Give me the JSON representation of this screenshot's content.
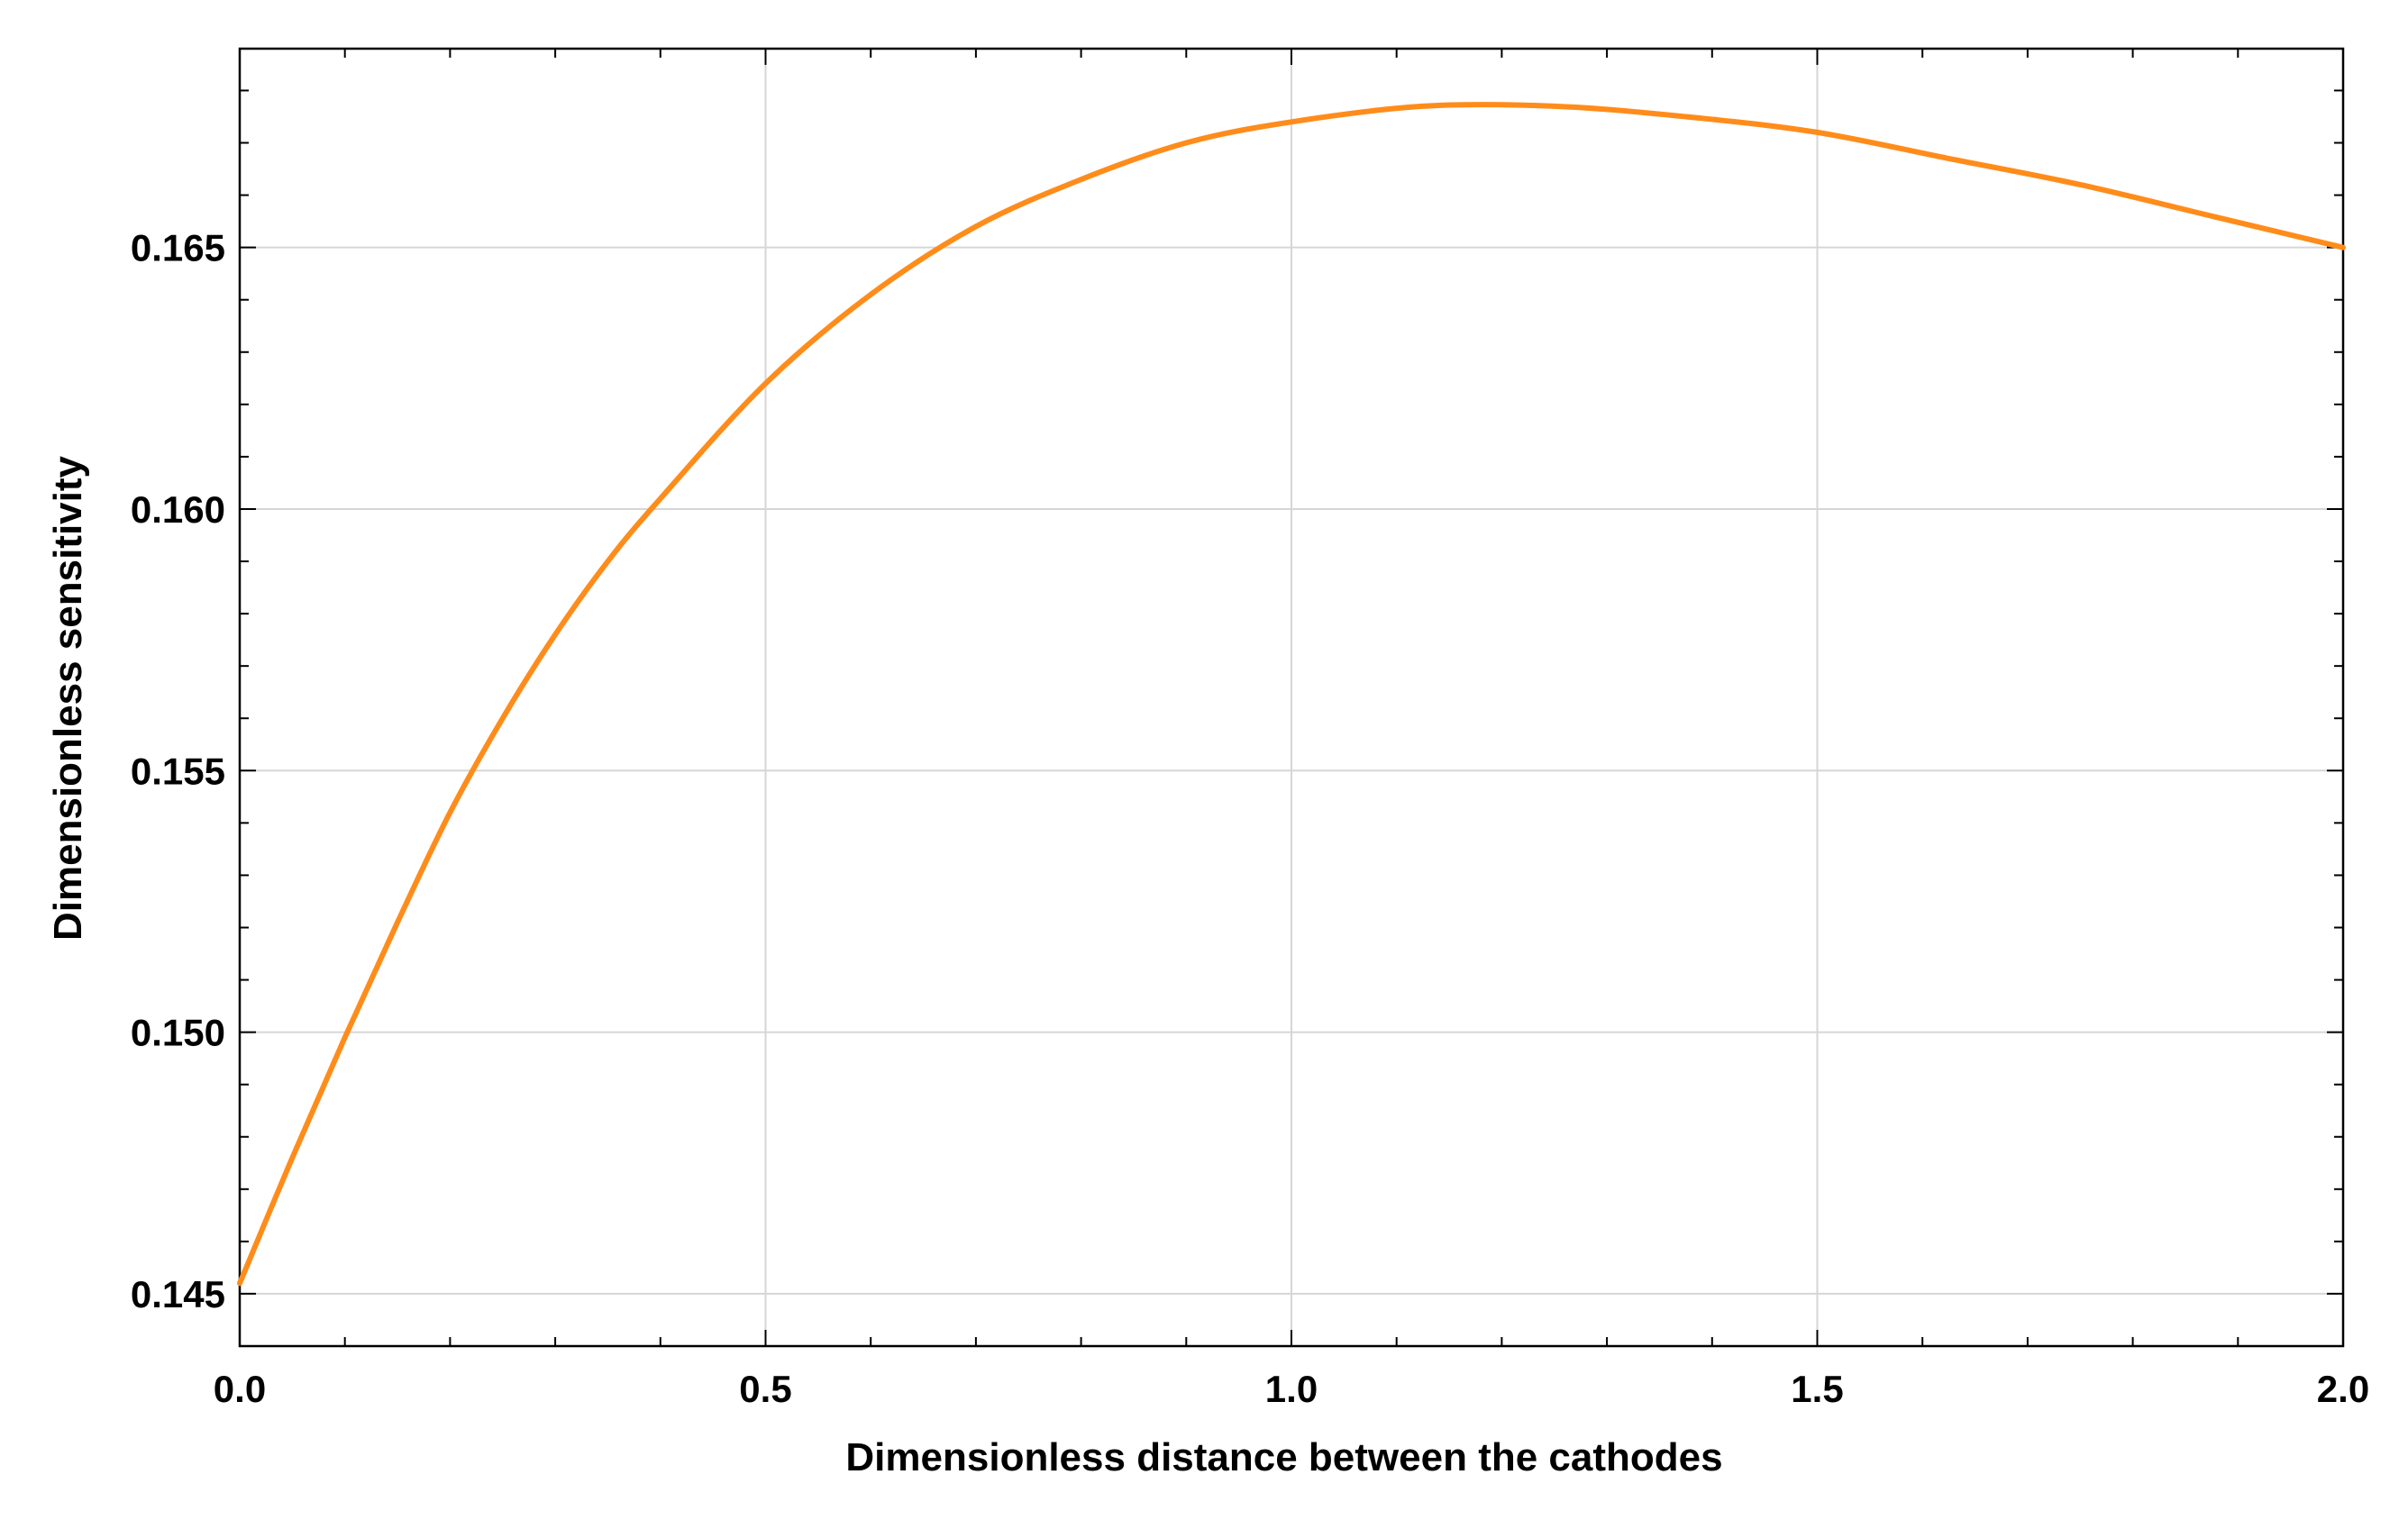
{
  "chart_data": {
    "type": "line",
    "title": "",
    "xlabel": "Dimensionless distance between the cathodes",
    "ylabel": "Dimensionless sensitivity",
    "xlim": [
      0,
      2
    ],
    "ylim": [
      0.144,
      0.1688
    ],
    "x_ticks": [
      0,
      0.5,
      1,
      1.5,
      2
    ],
    "x_tick_labels": [
      "0.0",
      "0.5",
      "1.0",
      "1.5",
      "2.0"
    ],
    "y_ticks": [
      0.145,
      0.15,
      0.155,
      0.16,
      0.165
    ],
    "y_tick_labels": [
      "0.145",
      "0.150",
      "0.155",
      "0.160",
      "0.165"
    ],
    "grid": true,
    "legend": "none",
    "line_color": "#ff8c1a",
    "series": [
      {
        "x": [
          0.0,
          0.05,
          0.1,
          0.15,
          0.2,
          0.25,
          0.3,
          0.35,
          0.4,
          0.5,
          0.6,
          0.7,
          0.8,
          0.9,
          1.0,
          1.125,
          1.25,
          1.375,
          1.5,
          1.625,
          1.75,
          1.875,
          2.0
        ],
        "y": [
          0.1452,
          0.1476,
          0.1499,
          0.1521,
          0.1542,
          0.156,
          0.1576,
          0.159,
          0.1602,
          0.1624,
          0.1641,
          0.1654,
          0.1663,
          0.167,
          0.1674,
          0.1677,
          0.1677,
          0.1675,
          0.1672,
          0.1667,
          0.1662,
          0.1656,
          0.165
        ]
      }
    ]
  }
}
